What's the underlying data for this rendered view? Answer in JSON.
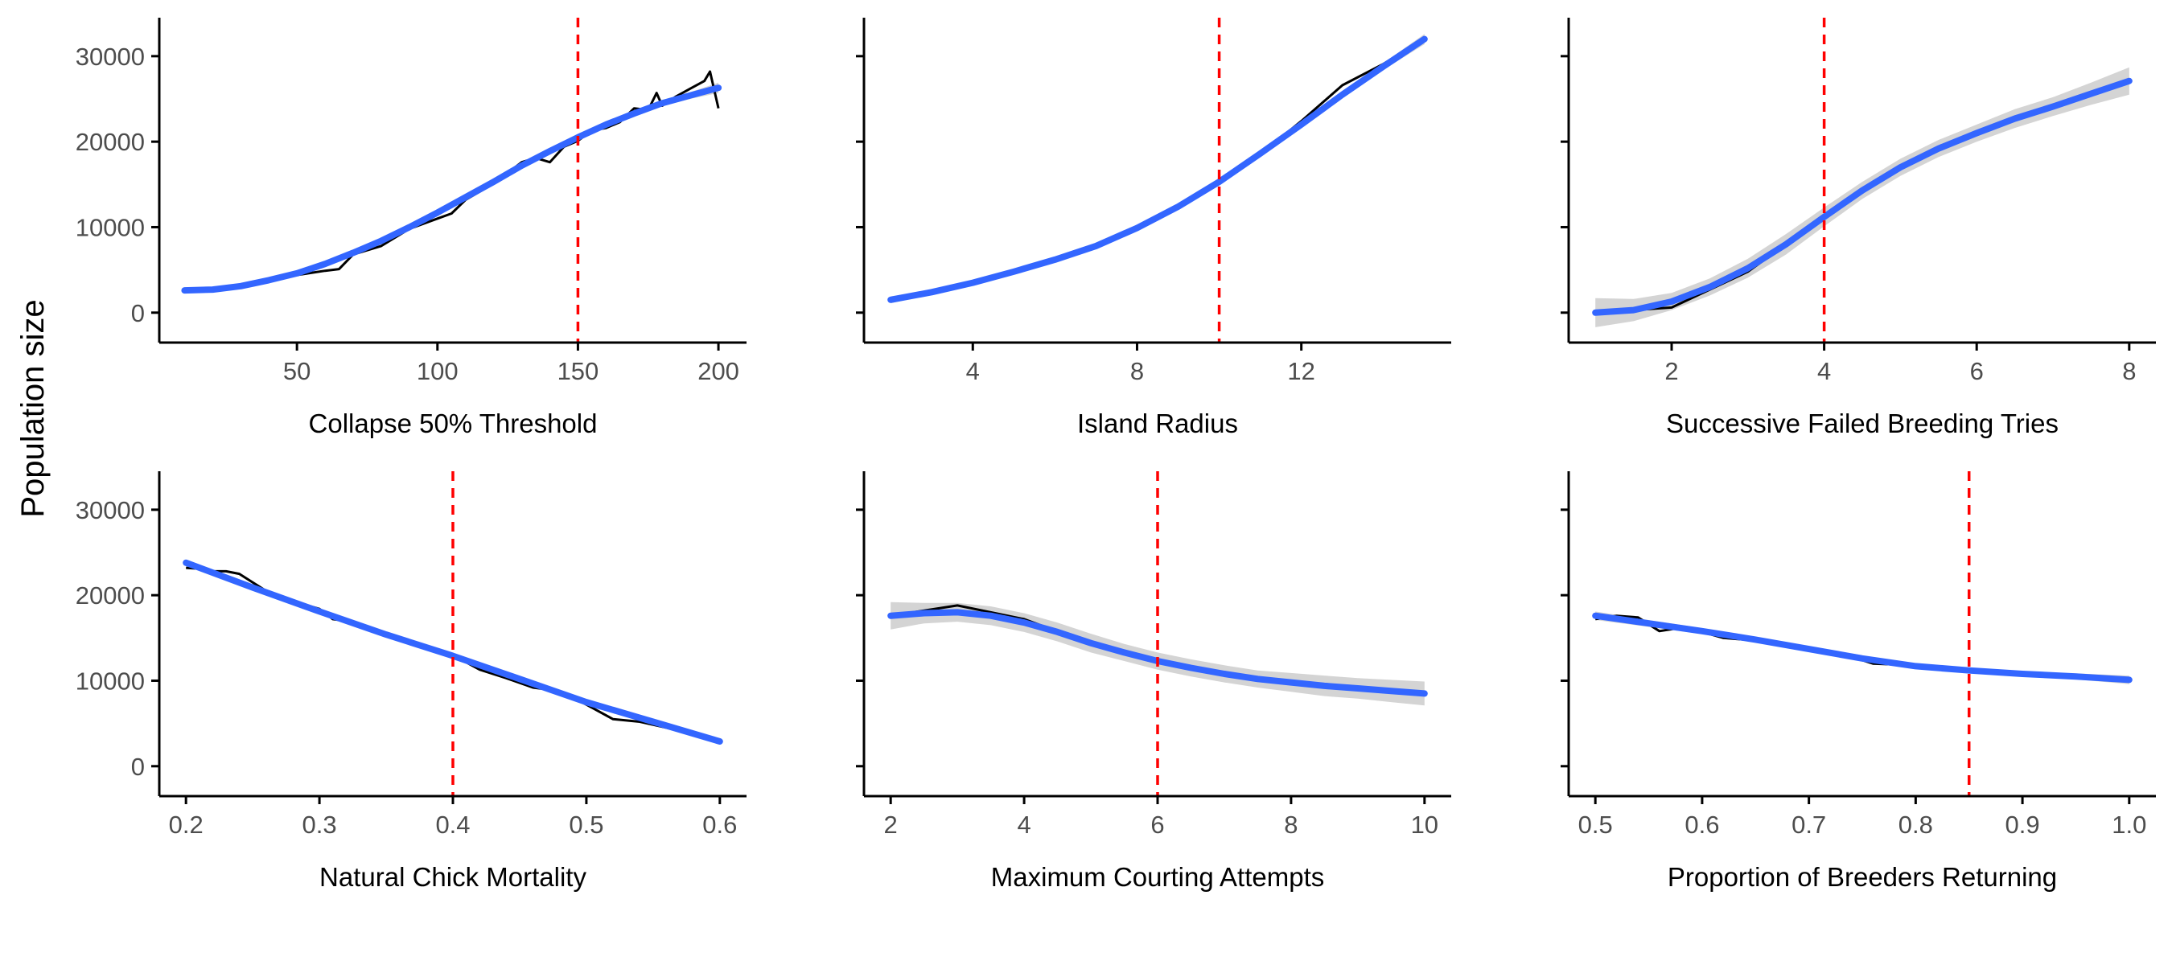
{
  "figure": {
    "ylabel": "Population size",
    "colors": {
      "smooth": "#3366FF",
      "ribbon": "#cccccc",
      "raw": "#000000",
      "reference": "#ff0000",
      "axis": "#000000",
      "tick_text": "#4d4d4d"
    }
  },
  "chart_data": [
    {
      "type": "line",
      "xlabel": "Collapse 50% Threshold",
      "ylabel": "Population size",
      "xlim": [
        1,
        210
      ],
      "ylim": [
        -3500,
        34500
      ],
      "xticks": [
        50,
        100,
        150,
        200
      ],
      "xtick_labels": [
        "50",
        "100",
        "150",
        "200"
      ],
      "yticks": [
        0,
        10000,
        20000,
        30000
      ],
      "ytick_labels": [
        "0",
        "10000",
        "20000",
        "30000"
      ],
      "show_yticklabels": true,
      "reference_x": 150,
      "series": [
        {
          "role": "raw",
          "x": [
            10,
            20,
            30,
            40,
            50,
            60,
            65,
            70,
            80,
            90,
            100,
            105,
            110,
            120,
            130,
            135,
            140,
            145,
            150,
            155,
            160,
            165,
            170,
            175,
            178,
            180,
            185,
            190,
            195,
            197,
            200
          ],
          "y": [
            2700,
            2700,
            3100,
            3700,
            4400,
            4900,
            5100,
            6800,
            7800,
            9800,
            11000,
            11600,
            13200,
            15100,
            17600,
            18100,
            17600,
            19400,
            20100,
            21300,
            21600,
            22300,
            23900,
            23700,
            25700,
            24200,
            25300,
            26200,
            27100,
            28200,
            23900
          ]
        },
        {
          "role": "smooth",
          "x": [
            10,
            20,
            30,
            40,
            50,
            60,
            70,
            80,
            90,
            100,
            110,
            120,
            130,
            140,
            150,
            160,
            170,
            180,
            190,
            200
          ],
          "y": [
            2600,
            2700,
            3100,
            3800,
            4600,
            5700,
            7000,
            8400,
            10000,
            11700,
            13500,
            15300,
            17200,
            18900,
            20500,
            22000,
            23300,
            24500,
            25400,
            26300
          ],
          "lower": [
            2300,
            2450,
            2850,
            3550,
            4350,
            5450,
            6750,
            8150,
            9750,
            11450,
            13250,
            15050,
            16950,
            18650,
            20250,
            21750,
            23000,
            24150,
            25000,
            25700
          ],
          "upper": [
            2900,
            2950,
            3350,
            4050,
            4850,
            5950,
            7250,
            8650,
            10250,
            11950,
            13750,
            15550,
            17450,
            19150,
            20750,
            22250,
            23600,
            24850,
            25800,
            26900
          ]
        }
      ]
    },
    {
      "type": "line",
      "xlabel": "Island Radius",
      "ylabel": "Population size",
      "xlim": [
        1.35,
        15.65
      ],
      "ylim": [
        -3500,
        34500
      ],
      "xticks": [
        4,
        8,
        12
      ],
      "xtick_labels": [
        "4",
        "8",
        "12"
      ],
      "yticks": [
        0,
        10000,
        20000,
        30000
      ],
      "ytick_labels": [
        "0",
        "10000",
        "20000",
        "30000"
      ],
      "show_yticklabels": false,
      "reference_x": 10,
      "series": [
        {
          "role": "raw",
          "x": [
            2,
            3,
            4,
            5,
            6,
            7,
            8,
            9,
            10,
            11,
            12,
            13,
            14,
            15
          ],
          "y": [
            1500,
            2400,
            3500,
            4900,
            6100,
            7900,
            10000,
            12300,
            15400,
            18500,
            22400,
            26600,
            29100,
            32000
          ]
        },
        {
          "role": "smooth",
          "x": [
            2,
            3,
            4,
            5,
            6,
            7,
            8,
            9,
            10,
            11,
            12,
            13,
            14,
            15
          ],
          "y": [
            1500,
            2400,
            3500,
            4800,
            6200,
            7800,
            9900,
            12400,
            15300,
            18600,
            22000,
            25500,
            28800,
            32000
          ],
          "lower": [
            1100,
            2100,
            3250,
            4550,
            5950,
            7550,
            9650,
            12150,
            15050,
            18350,
            21750,
            25200,
            28400,
            31400
          ],
          "upper": [
            1900,
            2700,
            3750,
            5050,
            6450,
            8050,
            10150,
            12650,
            15550,
            18850,
            22250,
            25800,
            29200,
            32600
          ]
        }
      ]
    },
    {
      "type": "line",
      "xlabel": "Successive Failed Breeding Tries",
      "ylabel": "Population size",
      "xlim": [
        0.65,
        8.35
      ],
      "ylim": [
        -3500,
        34500
      ],
      "xticks": [
        2,
        4,
        6,
        8
      ],
      "xtick_labels": [
        "2",
        "4",
        "6",
        "8"
      ],
      "yticks": [
        0,
        10000,
        20000,
        30000
      ],
      "ytick_labels": [
        "0",
        "10000",
        "20000",
        "30000"
      ],
      "show_yticklabels": false,
      "reference_x": 4,
      "series": [
        {
          "role": "raw",
          "x": [
            1,
            2,
            3,
            4,
            5,
            6,
            7,
            8
          ],
          "y": [
            0,
            600,
            4800,
            11200,
            17000,
            21200,
            24300,
            27100
          ]
        },
        {
          "role": "smooth",
          "x": [
            1,
            1.5,
            2,
            2.5,
            3,
            3.5,
            4,
            4.5,
            5,
            5.5,
            6,
            6.5,
            7,
            7.5,
            8
          ],
          "y": [
            0,
            300,
            1300,
            3000,
            5200,
            8000,
            11200,
            14300,
            17000,
            19200,
            21000,
            22700,
            24100,
            25600,
            27100
          ],
          "lower": [
            -1700,
            -1000,
            300,
            2000,
            4100,
            6800,
            10100,
            13300,
            16000,
            18200,
            20000,
            21600,
            23000,
            24300,
            25500
          ],
          "upper": [
            1700,
            1600,
            2300,
            4000,
            6300,
            9200,
            12300,
            15300,
            18000,
            20200,
            22000,
            23800,
            25200,
            26900,
            28700
          ]
        }
      ]
    },
    {
      "type": "line",
      "xlabel": "Natural Chick Mortality",
      "ylabel": "Population size",
      "xlim": [
        0.18,
        0.62
      ],
      "ylim": [
        -3500,
        34500
      ],
      "xticks": [
        0.2,
        0.3,
        0.4,
        0.5,
        0.6
      ],
      "xtick_labels": [
        "0.2",
        "0.3",
        "0.4",
        "0.5",
        "0.6"
      ],
      "yticks": [
        0,
        10000,
        20000,
        30000
      ],
      "ytick_labels": [
        "0",
        "10000",
        "20000",
        "30000"
      ],
      "show_yticklabels": true,
      "reference_x": 0.4,
      "series": [
        {
          "role": "raw",
          "x": [
            0.2,
            0.21,
            0.22,
            0.23,
            0.24,
            0.26,
            0.28,
            0.3,
            0.31,
            0.32,
            0.34,
            0.36,
            0.38,
            0.4,
            0.42,
            0.44,
            0.46,
            0.48,
            0.5,
            0.52,
            0.54,
            0.56,
            0.58,
            0.6
          ],
          "y": [
            23200,
            23100,
            22800,
            22800,
            22500,
            20500,
            19300,
            18400,
            17200,
            17000,
            16100,
            14700,
            13700,
            13000,
            11300,
            10300,
            9200,
            8800,
            7200,
            5500,
            5200,
            4500,
            3800,
            2900
          ]
        },
        {
          "role": "smooth",
          "x": [
            0.2,
            0.25,
            0.3,
            0.35,
            0.4,
            0.45,
            0.5,
            0.55,
            0.6
          ],
          "y": [
            23800,
            20900,
            18100,
            15400,
            12900,
            10200,
            7500,
            5200,
            2900
          ],
          "lower": [
            23500,
            20650,
            17850,
            15150,
            12650,
            9950,
            7250,
            4950,
            2550
          ],
          "upper": [
            24100,
            21150,
            18350,
            15650,
            13150,
            10450,
            7750,
            5450,
            3250
          ]
        }
      ]
    },
    {
      "type": "line",
      "xlabel": "Maximum Courting Attempts",
      "ylabel": "Population size",
      "xlim": [
        1.6,
        10.4
      ],
      "ylim": [
        -3500,
        34500
      ],
      "xticks": [
        2,
        4,
        6,
        8,
        10
      ],
      "xtick_labels": [
        "2",
        "4",
        "6",
        "8",
        "10"
      ],
      "yticks": [
        0,
        10000,
        20000,
        30000
      ],
      "ytick_labels": [
        "0",
        "10000",
        "20000",
        "30000"
      ],
      "show_yticklabels": false,
      "reference_x": 6,
      "series": [
        {
          "role": "raw",
          "x": [
            2,
            3,
            4,
            5,
            6,
            7,
            8,
            9,
            10
          ],
          "y": [
            17600,
            18800,
            17200,
            14300,
            12200,
            10900,
            9800,
            9100,
            8500
          ]
        },
        {
          "role": "smooth",
          "x": [
            2,
            2.5,
            3,
            3.5,
            4,
            4.5,
            5,
            5.5,
            6,
            6.5,
            7,
            7.5,
            8,
            8.5,
            9,
            9.5,
            10
          ],
          "y": [
            17600,
            17900,
            18000,
            17600,
            16800,
            15700,
            14400,
            13300,
            12300,
            11500,
            10800,
            10200,
            9800,
            9400,
            9100,
            8800,
            8500
          ],
          "lower": [
            16000,
            16700,
            16900,
            16500,
            15700,
            14600,
            13300,
            12300,
            11300,
            10500,
            9800,
            9200,
            8700,
            8200,
            7900,
            7500,
            7100
          ],
          "upper": [
            19200,
            19100,
            19100,
            18700,
            17900,
            16800,
            15500,
            14300,
            13300,
            12500,
            11800,
            11200,
            10900,
            10600,
            10300,
            10100,
            9900
          ]
        }
      ]
    },
    {
      "type": "line",
      "xlabel": "Proportion of Breeders Returning",
      "ylabel": "Population size",
      "xlim": [
        0.475,
        1.025
      ],
      "ylim": [
        -3500,
        34500
      ],
      "xticks": [
        0.5,
        0.6,
        0.7,
        0.8,
        0.9,
        1.0
      ],
      "xtick_labels": [
        "0.5",
        "0.6",
        "0.7",
        "0.8",
        "0.9",
        "1.0"
      ],
      "yticks": [
        0,
        10000,
        20000,
        30000
      ],
      "ytick_labels": [
        "0",
        "10000",
        "20000",
        "30000"
      ],
      "show_yticklabels": false,
      "reference_x": 0.85,
      "series": [
        {
          "role": "raw",
          "x": [
            0.5,
            0.52,
            0.54,
            0.56,
            0.58,
            0.6,
            0.62,
            0.64,
            0.66,
            0.68,
            0.7,
            0.72,
            0.74,
            0.76,
            0.78,
            0.8,
            0.85,
            0.9,
            0.95,
            1.0
          ],
          "y": [
            17200,
            17600,
            17400,
            15800,
            16200,
            15700,
            15000,
            14800,
            14600,
            14300,
            13700,
            13200,
            12800,
            12000,
            11900,
            11700,
            11100,
            10800,
            10400,
            9900
          ]
        },
        {
          "role": "smooth",
          "x": [
            0.5,
            0.55,
            0.6,
            0.65,
            0.7,
            0.75,
            0.8,
            0.85,
            0.9,
            0.95,
            1.0
          ],
          "y": [
            17600,
            16700,
            15800,
            14800,
            13700,
            12600,
            11700,
            11200,
            10800,
            10500,
            10100
          ],
          "lower": [
            17100,
            16300,
            15450,
            14500,
            13400,
            12300,
            11400,
            10900,
            10500,
            10150,
            9600
          ],
          "upper": [
            18100,
            17100,
            16150,
            15100,
            14000,
            12900,
            12000,
            11500,
            11100,
            10850,
            10600
          ]
        }
      ]
    }
  ]
}
